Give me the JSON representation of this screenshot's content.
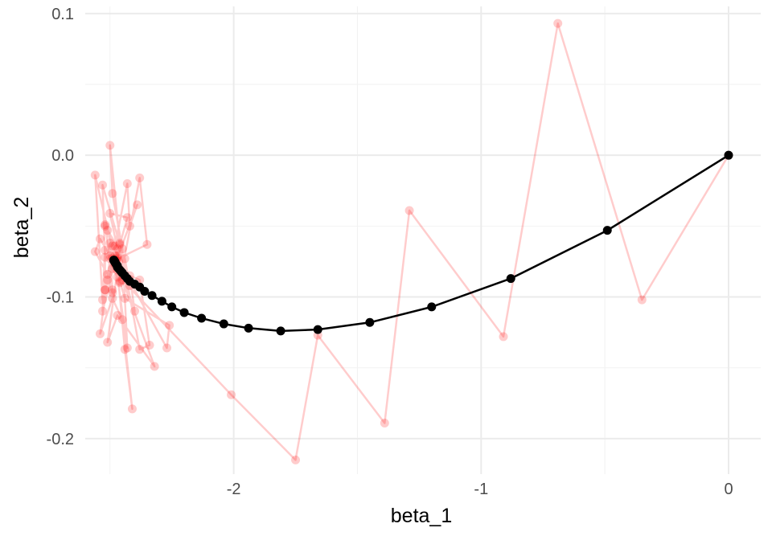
{
  "chart_data": {
    "type": "scatter",
    "xlabel": "beta_1",
    "ylabel": "beta_2",
    "xlim": [
      -2.6,
      0.13
    ],
    "ylim": [
      -0.225,
      0.105
    ],
    "x_ticks": [
      -2,
      -1,
      0
    ],
    "x_tick_labels": [
      "-2",
      "-1",
      "0"
    ],
    "y_ticks": [
      0.1,
      0.0,
      -0.1,
      -0.2
    ],
    "y_tick_labels": [
      "0.1",
      "0.0",
      "-0.1",
      "-0.2"
    ],
    "grid": true,
    "legend": "none",
    "series": [
      {
        "color": "#ff0000",
        "opacity": 0.2,
        "path": [
          [
            0,
            0
          ],
          [
            -0.35,
            -0.102
          ],
          [
            -0.69,
            0.093
          ],
          [
            -0.91,
            -0.128
          ],
          [
            -1.29,
            -0.039
          ],
          [
            -1.39,
            -0.189
          ],
          [
            -1.66,
            -0.127
          ],
          [
            -1.75,
            -0.215
          ],
          [
            -2.01,
            -0.169
          ],
          [
            -2.45,
            -0.088
          ],
          [
            -2.32,
            -0.149
          ],
          [
            -2.47,
            -0.113
          ],
          [
            -2.51,
            -0.132
          ],
          [
            -2.47,
            -0.081
          ],
          [
            -2.44,
            -0.137
          ],
          [
            -2.41,
            -0.179
          ],
          [
            -2.45,
            -0.116
          ],
          [
            -2.49,
            -0.101
          ],
          [
            -2.54,
            -0.126
          ],
          [
            -2.5,
            -0.073
          ],
          [
            -2.52,
            -0.049
          ],
          [
            -2.51,
            -0.053
          ],
          [
            -2.47,
            -0.071
          ],
          [
            -2.5,
            -0.071
          ],
          [
            -2.54,
            -0.059
          ],
          [
            -2.56,
            -0.068
          ],
          [
            -2.51,
            -0.084
          ],
          [
            -2.49,
            -0.095
          ],
          [
            -2.5,
            -0.062
          ],
          [
            -2.49,
            -0.097
          ],
          [
            -2.51,
            -0.088
          ],
          [
            -2.49,
            -0.08
          ],
          [
            -2.47,
            -0.086
          ],
          [
            -2.43,
            -0.136
          ],
          [
            -2.45,
            -0.066
          ],
          [
            -2.49,
            -0.027
          ],
          [
            -2.5,
            0.007
          ],
          [
            -2.46,
            -0.062
          ],
          [
            -2.38,
            -0.137
          ],
          [
            -2.34,
            -0.134
          ],
          [
            -2.38,
            -0.088
          ],
          [
            -2.42,
            -0.085
          ],
          [
            -2.4,
            -0.11
          ],
          [
            -2.45,
            -0.084
          ],
          [
            -2.48,
            -0.064
          ],
          [
            -2.43,
            -0.02
          ],
          [
            -2.42,
            -0.05
          ],
          [
            -2.39,
            -0.035
          ],
          [
            -2.48,
            -0.077
          ],
          [
            -2.52,
            -0.095
          ],
          [
            -2.49,
            -0.064
          ],
          [
            -2.52,
            -0.05
          ],
          [
            -2.44,
            -0.073
          ],
          [
            -2.42,
            -0.092
          ],
          [
            -2.46,
            -0.09
          ],
          [
            -2.47,
            -0.066
          ],
          [
            -2.5,
            -0.041
          ],
          [
            -2.43,
            -0.044
          ],
          [
            -2.46,
            -0.063
          ],
          [
            -2.53,
            -0.021
          ],
          [
            -2.52,
            -0.072
          ],
          [
            -2.53,
            -0.11
          ],
          [
            -2.48,
            -0.076
          ],
          [
            -2.52,
            -0.095
          ],
          [
            -2.52,
            -0.067
          ],
          [
            -2.53,
            -0.102
          ],
          [
            -2.56,
            -0.014
          ],
          [
            -2.48,
            -0.074
          ],
          [
            -2.35,
            -0.063
          ],
          [
            -2.38,
            -0.016
          ],
          [
            -2.46,
            -0.089
          ],
          [
            -2.44,
            -0.101
          ],
          [
            -2.26,
            -0.12
          ],
          [
            -2.27,
            -0.136
          ],
          [
            -2.47,
            -0.073
          ],
          [
            -2.48,
            -0.075
          ],
          [
            -2.475,
            -0.074
          ],
          [
            -2.47,
            -0.072
          ],
          [
            -2.48,
            -0.076
          ],
          [
            -2.465,
            -0.075
          ],
          [
            -2.49,
            -0.073
          ],
          [
            -2.48,
            -0.071
          ]
        ]
      },
      {
        "color": "#000000",
        "opacity": 1,
        "path": [
          [
            0,
            0
          ],
          [
            -0.49,
            -0.053
          ],
          [
            -0.88,
            -0.087
          ],
          [
            -1.2,
            -0.107
          ],
          [
            -1.45,
            -0.118
          ],
          [
            -1.66,
            -0.123
          ],
          [
            -1.81,
            -0.124
          ],
          [
            -1.94,
            -0.122
          ],
          [
            -2.04,
            -0.119
          ],
          [
            -2.13,
            -0.115
          ],
          [
            -2.2,
            -0.111
          ],
          [
            -2.25,
            -0.107
          ],
          [
            -2.29,
            -0.103
          ],
          [
            -2.33,
            -0.099
          ],
          [
            -2.36,
            -0.096
          ],
          [
            -2.38,
            -0.093
          ],
          [
            -2.4,
            -0.091
          ],
          [
            -2.42,
            -0.089
          ],
          [
            -2.43,
            -0.087
          ],
          [
            -2.44,
            -0.085
          ],
          [
            -2.45,
            -0.083
          ],
          [
            -2.455,
            -0.082
          ],
          [
            -2.46,
            -0.081
          ],
          [
            -2.465,
            -0.08
          ],
          [
            -2.47,
            -0.079
          ],
          [
            -2.47,
            -0.078
          ],
          [
            -2.475,
            -0.077
          ],
          [
            -2.478,
            -0.076
          ],
          [
            -2.48,
            -0.075
          ],
          [
            -2.482,
            -0.075
          ],
          [
            -2.484,
            -0.074
          ],
          [
            -2.485,
            -0.074
          ]
        ]
      }
    ]
  }
}
